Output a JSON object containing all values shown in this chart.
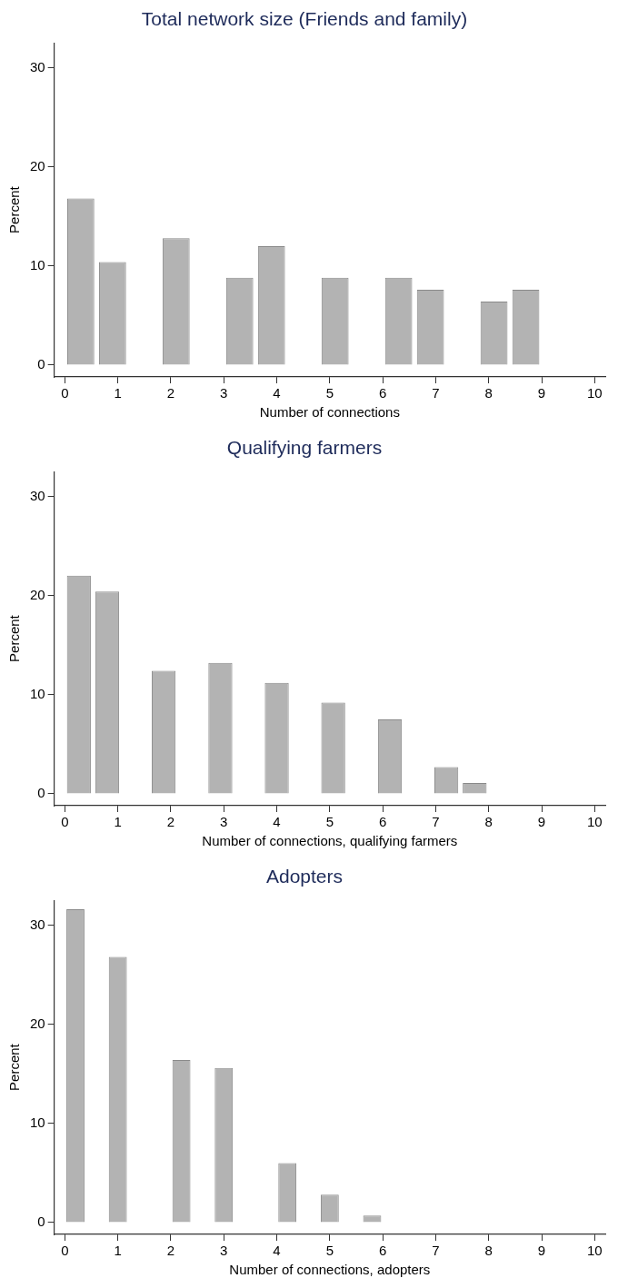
{
  "chart_data": [
    {
      "type": "histogram",
      "title": "Total network size (Friends and family)",
      "xlabel": "Number of connections",
      "ylabel": "Percent",
      "color": "#b3b3b3",
      "bins": [
        0,
        0.6,
        1.2,
        1.8,
        2.4,
        3.0,
        3.6,
        4.2,
        4.8,
        5.4,
        6.0,
        6.6,
        7.2,
        7.8,
        8.4,
        9.0
      ],
      "values": [
        16.8,
        10.4,
        0,
        12.8,
        0,
        8.8,
        12.0,
        0,
        8.8,
        0,
        8.8,
        7.6,
        0,
        6.4,
        7.6
      ],
      "xlim": [
        -0.2,
        10.2
      ],
      "xticks": [
        0,
        1,
        2,
        3,
        4,
        5,
        6,
        7,
        8,
        9,
        10
      ],
      "ylim": [
        -1.2,
        32.5
      ],
      "yticks": [
        0,
        10,
        20,
        30
      ],
      "grid": false,
      "legend": false
    },
    {
      "type": "histogram",
      "title": "Qualifying farmers",
      "xlabel": "Number of connections, qualifying farmers",
      "ylabel": "Percent",
      "color": "#b3b3b3",
      "bins": [
        0,
        0.53,
        1.07,
        1.6,
        2.13,
        2.67,
        3.2,
        3.73,
        4.27,
        4.8,
        5.33,
        5.87,
        6.4,
        6.93,
        7.47,
        8
      ],
      "values": [
        22.0,
        20.4,
        0,
        12.4,
        0,
        13.2,
        0,
        11.2,
        0,
        9.2,
        0,
        7.5,
        0,
        2.7,
        1.1
      ],
      "xlim": [
        -0.2,
        10.2
      ],
      "xticks": [
        0,
        1,
        2,
        3,
        4,
        5,
        6,
        7,
        8,
        9,
        10
      ],
      "ylim": [
        -1.2,
        32.5
      ],
      "yticks": [
        0,
        10,
        20,
        30
      ],
      "grid": false,
      "legend": false
    },
    {
      "type": "histogram",
      "title": "Adopters",
      "xlabel": "Number of connections, adopters",
      "ylabel": "Percent",
      "color": "#b3b3b3",
      "bins": [
        0,
        0.4,
        0.8,
        1.2,
        1.6,
        2.0,
        2.4,
        2.8,
        3.2,
        3.6,
        4.0,
        4.4,
        4.8,
        5.2,
        5.6,
        6.0
      ],
      "values": [
        31.6,
        0,
        26.8,
        0,
        0,
        16.4,
        0,
        15.6,
        0,
        0,
        6.0,
        0,
        2.8,
        0,
        0.7
      ],
      "xlim": [
        -0.2,
        10.2
      ],
      "xticks": [
        0,
        1,
        2,
        3,
        4,
        5,
        6,
        7,
        8,
        9,
        10
      ],
      "ylim": [
        -1.2,
        32.5
      ],
      "yticks": [
        0,
        10,
        20,
        30
      ],
      "grid": false,
      "legend": false
    }
  ]
}
